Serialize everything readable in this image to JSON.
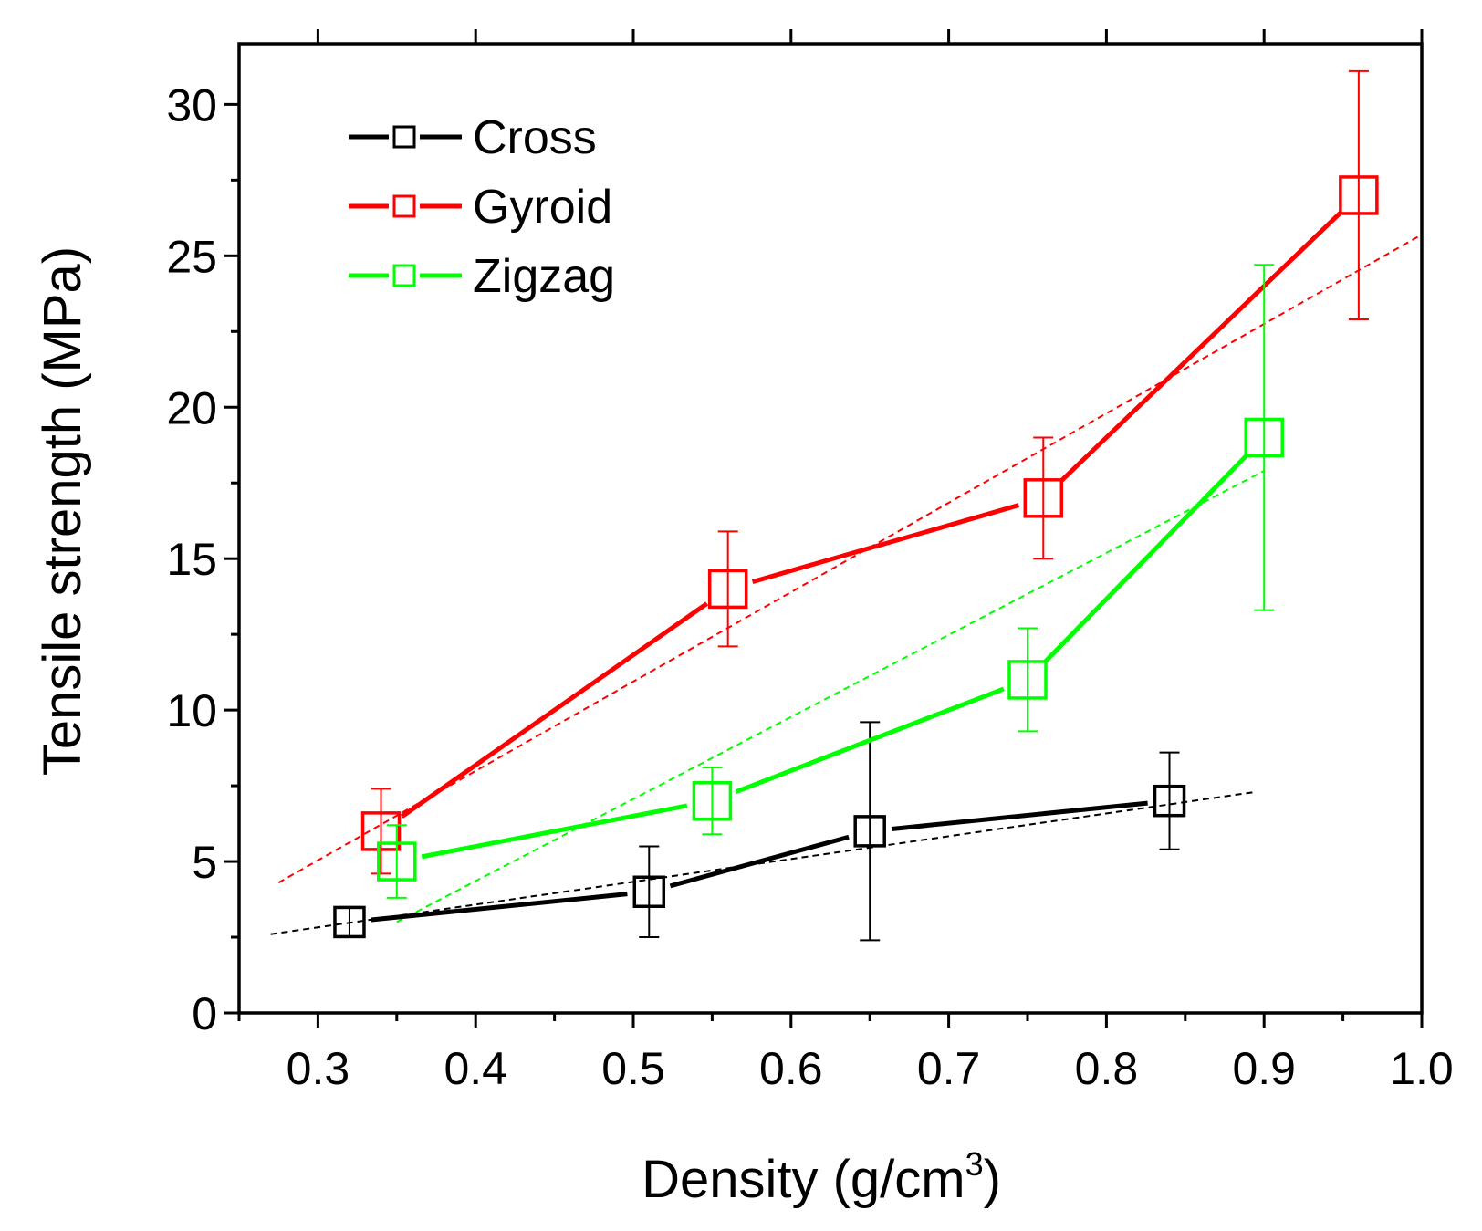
{
  "chart_data": {
    "type": "line",
    "title": "",
    "xlabel": "Density (g/cm",
    "xlabel_superscript": "3",
    "xlabel_close": ")",
    "ylabel": "Tensile strength  (MPa)",
    "xlim": [
      0.25,
      1.0
    ],
    "ylim": [
      0,
      32
    ],
    "xticks": [
      0.3,
      0.4,
      0.5,
      0.6,
      0.7,
      0.8,
      0.9,
      1.0
    ],
    "xtick_labels": [
      "0.3",
      "0.4",
      "0.5",
      "0.6",
      "0.7",
      "0.8",
      "0.9",
      "1.0"
    ],
    "yticks": [
      0,
      5,
      10,
      15,
      20,
      25,
      30
    ],
    "ytick_labels": [
      "0",
      "5",
      "10",
      "15",
      "20",
      "25",
      "30"
    ],
    "legend_position": "top-left",
    "series": [
      {
        "name": "Cross",
        "color": "#000000",
        "x": [
          0.32,
          0.51,
          0.65,
          0.84
        ],
        "y": [
          3.0,
          4.0,
          6.0,
          7.0
        ],
        "err": [
          0.5,
          1.5,
          3.6,
          1.6
        ],
        "fit": {
          "x": [
            0.27,
            0.895
          ],
          "y": [
            2.6,
            7.3
          ]
        }
      },
      {
        "name": "Gyroid",
        "color": "#ff0000",
        "x": [
          0.34,
          0.56,
          0.76,
          0.96
        ],
        "y": [
          6.0,
          14.0,
          17.0,
          27.0
        ],
        "err": [
          1.4,
          1.9,
          2.0,
          4.1
        ],
        "fit": {
          "x": [
            0.275,
            1.0
          ],
          "y": [
            4.3,
            25.7
          ]
        }
      },
      {
        "name": "Zigzag",
        "color": "#00ff00",
        "x": [
          0.35,
          0.55,
          0.75,
          0.9
        ],
        "y": [
          5.0,
          7.0,
          11.0,
          19.0
        ],
        "err": [
          1.2,
          1.1,
          1.7,
          5.7
        ],
        "fit": {
          "x": [
            0.35,
            0.9
          ],
          "y": [
            3.0,
            17.9
          ]
        }
      }
    ]
  }
}
